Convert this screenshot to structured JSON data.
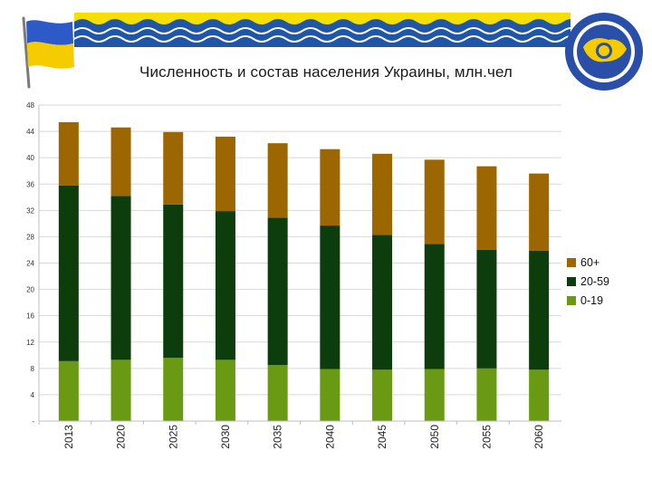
{
  "title": "Численность и состав населения Украины, млн.чел",
  "colors": {
    "age_60_plus": "#9c6600",
    "age_20_59": "#0d3d0d",
    "age_0_19": "#6a9a13",
    "flag_blue": "#2e59c8",
    "flag_yellow": "#f5cc00",
    "banner_blue": "#1f56a8",
    "banner_yellow": "#f4df00"
  },
  "chart_data": {
    "type": "bar",
    "stacked": true,
    "title": "Численность и состав населения Украины, млн.чел",
    "xlabel": "",
    "ylabel": "",
    "categories": [
      "2013",
      "2020",
      "2025",
      "2030",
      "2035",
      "2040",
      "2045",
      "2050",
      "2055",
      "2060"
    ],
    "ylim": [
      0,
      48
    ],
    "yticks": [
      "0",
      "4",
      "8",
      "12",
      "16",
      "20",
      "24",
      "28",
      "32",
      "36",
      "40",
      "44",
      "48"
    ],
    "grid": true,
    "legend_position": "right",
    "series": [
      {
        "name": "0-19",
        "values": [
          9.1,
          9.3,
          9.6,
          9.3,
          8.5,
          7.9,
          7.8,
          7.9,
          8.0,
          7.8
        ]
      },
      {
        "name": "20-59",
        "values": [
          26.7,
          24.9,
          23.3,
          22.6,
          22.4,
          21.8,
          20.5,
          19.0,
          18.0,
          18.1
        ]
      },
      {
        "name": "60+",
        "values": [
          9.6,
          10.4,
          11.0,
          11.3,
          11.3,
          11.6,
          12.3,
          12.8,
          12.7,
          11.7
        ]
      }
    ]
  },
  "legend": [
    {
      "label": "60+",
      "color_key": "age_60_plus"
    },
    {
      "label": "20-59",
      "color_key": "age_20_59"
    },
    {
      "label": "0-19",
      "color_key": "age_0_19"
    }
  ]
}
